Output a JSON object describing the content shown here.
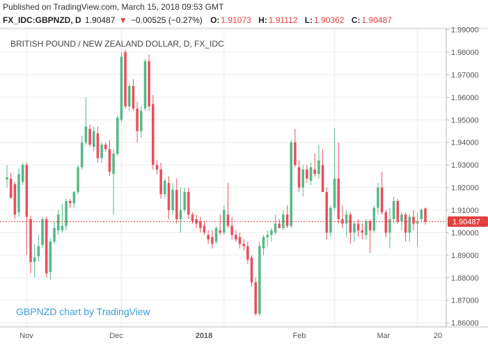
{
  "header": {
    "published": "Published on TradingView.com, March 15, 2018 09:53 GMT",
    "symbol": "FX_IDC:GBPNZD, D",
    "last": "1.90487",
    "arrow": "▼",
    "change": "−0.00525 (−0.27%)",
    "o_label": "O:",
    "o_value": "1.91073",
    "h_label": "H:",
    "h_value": "1.91112",
    "l_label": "L:",
    "l_value": "1.90362",
    "c_label": "C:",
    "c_value": "1.90487"
  },
  "colors": {
    "up": "#53b987",
    "down": "#eb4d5c",
    "price_line": "#e0413f",
    "watermark": "#3aa0d8",
    "grid": "#ececec"
  },
  "chart_data": {
    "type": "candlestick",
    "title": "BRITISH POUND / NEW ZEALAND DOLLAR, D, FX_IDC",
    "watermark": "GBPNZD chart by TradingView",
    "y_ticks": [
      "1.99000",
      "1.98000",
      "1.97000",
      "1.96000",
      "1.95000",
      "1.94000",
      "1.93000",
      "1.92000",
      "1.91000",
      "1.90000",
      "1.89000",
      "1.88000",
      "1.87000",
      "1.86000"
    ],
    "ylim": [
      1.8585,
      1.9905
    ],
    "x_ticks": [
      "Nov",
      "Dec",
      "2018",
      "Feb",
      "Mar",
      "20"
    ],
    "last_price_label": "1.90487",
    "last_price": 1.90487,
    "grid": true,
    "candles": [
      {
        "o": 1.9235,
        "h": 1.93,
        "l": 1.92,
        "c": 1.9245
      },
      {
        "o": 1.924,
        "h": 1.9265,
        "l": 1.915,
        "c": 1.9155
      },
      {
        "o": 1.9215,
        "h": 1.9225,
        "l": 1.906,
        "c": 1.908
      },
      {
        "o": 1.909,
        "h": 1.9285,
        "l": 1.907,
        "c": 1.926
      },
      {
        "o": 1.9225,
        "h": 1.931,
        "l": 1.921,
        "c": 1.93
      },
      {
        "o": 1.93,
        "h": 1.931,
        "l": 1.89,
        "c": 1.907
      },
      {
        "o": 1.906,
        "h": 1.9075,
        "l": 1.882,
        "c": 1.887
      },
      {
        "o": 1.887,
        "h": 1.895,
        "l": 1.88,
        "c": 1.889
      },
      {
        "o": 1.8895,
        "h": 1.899,
        "l": 1.887,
        "c": 1.894
      },
      {
        "o": 1.8945,
        "h": 1.907,
        "l": 1.893,
        "c": 1.906
      },
      {
        "o": 1.906,
        "h": 1.907,
        "l": 1.88,
        "c": 1.882
      },
      {
        "o": 1.8825,
        "h": 1.8975,
        "l": 1.879,
        "c": 1.896
      },
      {
        "o": 1.896,
        "h": 1.905,
        "l": 1.895,
        "c": 1.902
      },
      {
        "o": 1.901,
        "h": 1.91,
        "l": 1.899,
        "c": 1.908
      },
      {
        "o": 1.901,
        "h": 1.913,
        "l": 1.9,
        "c": 1.903
      },
      {
        "o": 1.903,
        "h": 1.915,
        "l": 1.901,
        "c": 1.914
      },
      {
        "o": 1.914,
        "h": 1.915,
        "l": 1.911,
        "c": 1.913
      },
      {
        "o": 1.913,
        "h": 1.9185,
        "l": 1.911,
        "c": 1.918
      },
      {
        "o": 1.918,
        "h": 1.93,
        "l": 1.917,
        "c": 1.929
      },
      {
        "o": 1.929,
        "h": 1.943,
        "l": 1.928,
        "c": 1.94
      },
      {
        "o": 1.94,
        "h": 1.96,
        "l": 1.939,
        "c": 1.947
      },
      {
        "o": 1.946,
        "h": 1.948,
        "l": 1.938,
        "c": 1.939
      },
      {
        "o": 1.938,
        "h": 1.947,
        "l": 1.936,
        "c": 1.945
      },
      {
        "o": 1.944,
        "h": 1.947,
        "l": 1.931,
        "c": 1.933
      },
      {
        "o": 1.933,
        "h": 1.94,
        "l": 1.931,
        "c": 1.939
      },
      {
        "o": 1.939,
        "h": 1.94,
        "l": 1.936,
        "c": 1.937
      },
      {
        "o": 1.937,
        "h": 1.941,
        "l": 1.925,
        "c": 1.927
      },
      {
        "o": 1.926,
        "h": 1.937,
        "l": 1.908,
        "c": 1.935
      },
      {
        "o": 1.935,
        "h": 1.952,
        "l": 1.934,
        "c": 1.951
      },
      {
        "o": 1.95,
        "h": 1.98,
        "l": 1.949,
        "c": 1.978
      },
      {
        "o": 1.98,
        "h": 1.981,
        "l": 1.955,
        "c": 1.956
      },
      {
        "o": 1.956,
        "h": 1.966,
        "l": 1.954,
        "c": 1.965
      },
      {
        "o": 1.965,
        "h": 1.968,
        "l": 1.954,
        "c": 1.955
      },
      {
        "o": 1.955,
        "h": 1.958,
        "l": 1.94,
        "c": 1.945
      },
      {
        "o": 1.945,
        "h": 1.956,
        "l": 1.942,
        "c": 1.954
      },
      {
        "o": 1.955,
        "h": 1.977,
        "l": 1.954,
        "c": 1.976
      },
      {
        "o": 1.976,
        "h": 1.979,
        "l": 1.954,
        "c": 1.956
      },
      {
        "o": 1.957,
        "h": 1.961,
        "l": 1.928,
        "c": 1.93
      },
      {
        "o": 1.93,
        "h": 1.932,
        "l": 1.926,
        "c": 1.928
      },
      {
        "o": 1.928,
        "h": 1.931,
        "l": 1.915,
        "c": 1.917
      },
      {
        "o": 1.917,
        "h": 1.924,
        "l": 1.915,
        "c": 1.923
      },
      {
        "o": 1.922,
        "h": 1.925,
        "l": 1.906,
        "c": 1.91
      },
      {
        "o": 1.91,
        "h": 1.922,
        "l": 1.908,
        "c": 1.919
      },
      {
        "o": 1.919,
        "h": 1.924,
        "l": 1.904,
        "c": 1.906
      },
      {
        "o": 1.906,
        "h": 1.92,
        "l": 1.9,
        "c": 1.91
      },
      {
        "o": 1.91,
        "h": 1.92,
        "l": 1.909,
        "c": 1.918
      },
      {
        "o": 1.918,
        "h": 1.92,
        "l": 1.906,
        "c": 1.908
      },
      {
        "o": 1.908,
        "h": 1.909,
        "l": 1.904,
        "c": 1.905
      },
      {
        "o": 1.906,
        "h": 1.908,
        "l": 1.902,
        "c": 1.904
      },
      {
        "o": 1.905,
        "h": 1.907,
        "l": 1.9,
        "c": 1.902
      },
      {
        "o": 1.903,
        "h": 1.905,
        "l": 1.899,
        "c": 1.9
      },
      {
        "o": 1.899,
        "h": 1.901,
        "l": 1.895,
        "c": 1.897
      },
      {
        "o": 1.898,
        "h": 1.901,
        "l": 1.893,
        "c": 1.895
      },
      {
        "o": 1.896,
        "h": 1.903,
        "l": 1.895,
        "c": 1.902
      },
      {
        "o": 1.901,
        "h": 1.908,
        "l": 1.899,
        "c": 1.9
      },
      {
        "o": 1.9,
        "h": 1.912,
        "l": 1.899,
        "c": 1.91
      },
      {
        "o": 1.908,
        "h": 1.922,
        "l": 1.902,
        "c": 1.903
      },
      {
        "o": 1.903,
        "h": 1.907,
        "l": 1.897,
        "c": 1.899
      },
      {
        "o": 1.899,
        "h": 1.901,
        "l": 1.896,
        "c": 1.897
      },
      {
        "o": 1.898,
        "h": 1.9,
        "l": 1.893,
        "c": 1.895
      },
      {
        "o": 1.895,
        "h": 1.897,
        "l": 1.892,
        "c": 1.894
      },
      {
        "o": 1.894,
        "h": 1.896,
        "l": 1.886,
        "c": 1.888
      },
      {
        "o": 1.889,
        "h": 1.89,
        "l": 1.876,
        "c": 1.878
      },
      {
        "o": 1.878,
        "h": 1.88,
        "l": 1.863,
        "c": 1.864
      },
      {
        "o": 1.864,
        "h": 1.896,
        "l": 1.863,
        "c": 1.894
      },
      {
        "o": 1.893,
        "h": 1.899,
        "l": 1.89,
        "c": 1.898
      },
      {
        "o": 1.898,
        "h": 1.901,
        "l": 1.894,
        "c": 1.899
      },
      {
        "o": 1.899,
        "h": 1.902,
        "l": 1.896,
        "c": 1.901
      },
      {
        "o": 1.9,
        "h": 1.908,
        "l": 1.899,
        "c": 1.904
      },
      {
        "o": 1.904,
        "h": 1.906,
        "l": 1.902,
        "c": 1.902
      },
      {
        "o": 1.902,
        "h": 1.91,
        "l": 1.901,
        "c": 1.908
      },
      {
        "o": 1.908,
        "h": 1.912,
        "l": 1.902,
        "c": 1.903
      },
      {
        "o": 1.903,
        "h": 1.941,
        "l": 1.902,
        "c": 1.94
      },
      {
        "o": 1.94,
        "h": 1.946,
        "l": 1.929,
        "c": 1.93
      },
      {
        "o": 1.929,
        "h": 1.932,
        "l": 1.918,
        "c": 1.92
      },
      {
        "o": 1.92,
        "h": 1.93,
        "l": 1.916,
        "c": 1.928
      },
      {
        "o": 1.928,
        "h": 1.93,
        "l": 1.922,
        "c": 1.924
      },
      {
        "o": 1.923,
        "h": 1.931,
        "l": 1.921,
        "c": 1.929
      },
      {
        "o": 1.928,
        "h": 1.935,
        "l": 1.925,
        "c": 1.926
      },
      {
        "o": 1.926,
        "h": 1.939,
        "l": 1.924,
        "c": 1.932
      },
      {
        "o": 1.93,
        "h": 1.937,
        "l": 1.918,
        "c": 1.918
      },
      {
        "o": 1.918,
        "h": 1.92,
        "l": 1.897,
        "c": 1.9
      },
      {
        "o": 1.9,
        "h": 1.912,
        "l": 1.898,
        "c": 1.911
      },
      {
        "o": 1.911,
        "h": 1.946,
        "l": 1.91,
        "c": 1.924
      },
      {
        "o": 1.924,
        "h": 1.94,
        "l": 1.904,
        "c": 1.906
      },
      {
        "o": 1.906,
        "h": 1.912,
        "l": 1.902,
        "c": 1.904
      },
      {
        "o": 1.904,
        "h": 1.91,
        "l": 1.898,
        "c": 1.908
      },
      {
        "o": 1.908,
        "h": 1.909,
        "l": 1.895,
        "c": 1.9
      },
      {
        "o": 1.9,
        "h": 1.905,
        "l": 1.896,
        "c": 1.904
      },
      {
        "o": 1.904,
        "h": 1.906,
        "l": 1.898,
        "c": 1.901
      },
      {
        "o": 1.901,
        "h": 1.904,
        "l": 1.897,
        "c": 1.9
      },
      {
        "o": 1.899,
        "h": 1.906,
        "l": 1.897,
        "c": 1.905
      },
      {
        "o": 1.905,
        "h": 1.906,
        "l": 1.891,
        "c": 1.901
      },
      {
        "o": 1.901,
        "h": 1.912,
        "l": 1.9,
        "c": 1.911
      },
      {
        "o": 1.911,
        "h": 1.922,
        "l": 1.908,
        "c": 1.92
      },
      {
        "o": 1.92,
        "h": 1.927,
        "l": 1.908,
        "c": 1.909
      },
      {
        "o": 1.909,
        "h": 1.91,
        "l": 1.898,
        "c": 1.9
      },
      {
        "o": 1.9,
        "h": 1.911,
        "l": 1.893,
        "c": 1.906
      },
      {
        "o": 1.906,
        "h": 1.916,
        "l": 1.904,
        "c": 1.914
      },
      {
        "o": 1.914,
        "h": 1.915,
        "l": 1.904,
        "c": 1.905
      },
      {
        "o": 1.905,
        "h": 1.909,
        "l": 1.901,
        "c": 1.908
      },
      {
        "o": 1.908,
        "h": 1.909,
        "l": 1.896,
        "c": 1.9
      },
      {
        "o": 1.9,
        "h": 1.908,
        "l": 1.896,
        "c": 1.907
      },
      {
        "o": 1.907,
        "h": 1.91,
        "l": 1.901,
        "c": 1.904
      },
      {
        "o": 1.904,
        "h": 1.909,
        "l": 1.894,
        "c": 1.905
      },
      {
        "o": 1.906,
        "h": 1.911,
        "l": 1.905,
        "c": 1.91
      },
      {
        "o": 1.91073,
        "h": 1.91112,
        "l": 1.90362,
        "c": 1.90487
      }
    ]
  }
}
